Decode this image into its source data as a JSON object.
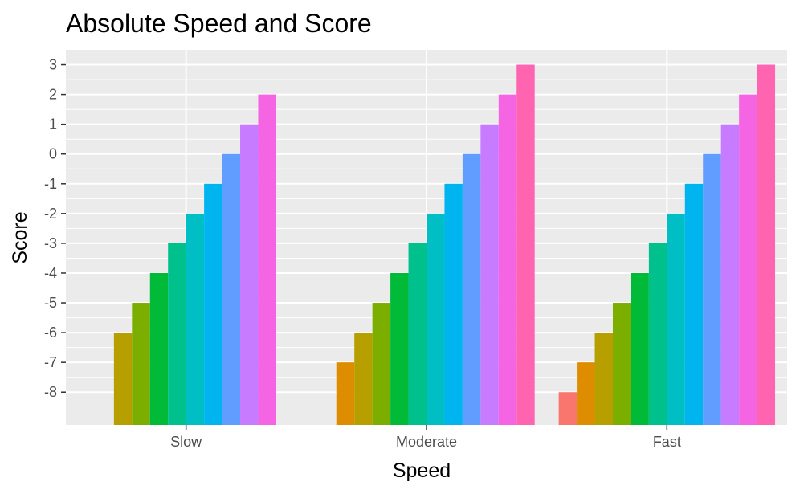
{
  "chart_data": {
    "type": "bar",
    "title": "Absolute Speed and Score",
    "xlabel": "Speed",
    "ylabel": "Score",
    "categories": [
      "Slow",
      "Moderate",
      "Fast"
    ],
    "ylim": [
      -9.1,
      3.5
    ],
    "baseline": -9.1,
    "y_ticks": [
      3,
      2,
      1,
      0,
      -1,
      -2,
      -3,
      -4,
      -5,
      -6,
      -7,
      -8
    ],
    "grid": true,
    "legend": "none",
    "panel_background": "#EBEBEB",
    "gridline_color": "#FFFFFF",
    "bar_colors": [
      "#F8766D",
      "#DE8C00",
      "#B79F00",
      "#7CAE00",
      "#00BA38",
      "#00C08B",
      "#00BFC4",
      "#00B4F0",
      "#619CFF",
      "#C77CFF",
      "#F564E3",
      "#FF64B0"
    ],
    "slots_per_category": 12,
    "groups": [
      {
        "category": "Slow",
        "bars": [
          {
            "slot": 2,
            "value": -6
          },
          {
            "slot": 3,
            "value": -5
          },
          {
            "slot": 4,
            "value": -4
          },
          {
            "slot": 5,
            "value": -3
          },
          {
            "slot": 6,
            "value": -2
          },
          {
            "slot": 7,
            "value": -1
          },
          {
            "slot": 8,
            "value": 0
          },
          {
            "slot": 9,
            "value": 1
          },
          {
            "slot": 10,
            "value": 2
          }
        ]
      },
      {
        "category": "Moderate",
        "bars": [
          {
            "slot": 1,
            "value": -7
          },
          {
            "slot": 2,
            "value": -6
          },
          {
            "slot": 3,
            "value": -5
          },
          {
            "slot": 4,
            "value": -4
          },
          {
            "slot": 5,
            "value": -3
          },
          {
            "slot": 6,
            "value": -2
          },
          {
            "slot": 7,
            "value": -1
          },
          {
            "slot": 8,
            "value": 0
          },
          {
            "slot": 9,
            "value": 1
          },
          {
            "slot": 10,
            "value": 2
          },
          {
            "slot": 11,
            "value": 3
          }
        ]
      },
      {
        "category": "Fast",
        "bars": [
          {
            "slot": 0,
            "value": -8
          },
          {
            "slot": 1,
            "value": -7
          },
          {
            "slot": 2,
            "value": -6
          },
          {
            "slot": 3,
            "value": -5
          },
          {
            "slot": 4,
            "value": -4
          },
          {
            "slot": 5,
            "value": -3
          },
          {
            "slot": 6,
            "value": -2
          },
          {
            "slot": 7,
            "value": -1
          },
          {
            "slot": 8,
            "value": 0
          },
          {
            "slot": 9,
            "value": 1
          },
          {
            "slot": 10,
            "value": 2
          },
          {
            "slot": 11,
            "value": 3
          }
        ]
      }
    ]
  }
}
